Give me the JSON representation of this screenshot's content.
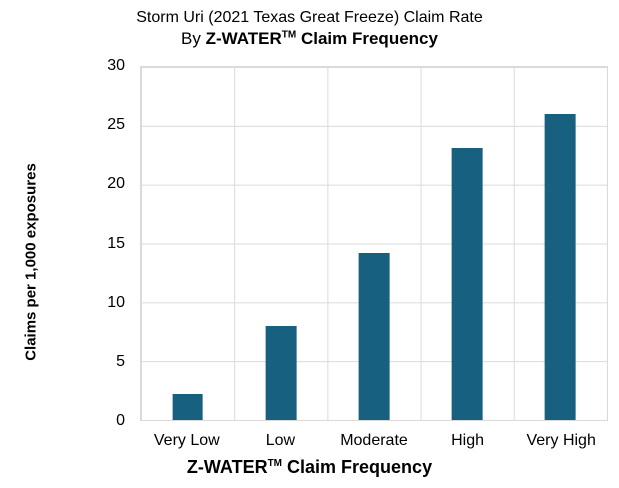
{
  "title": {
    "line1": "Storm Uri (2021 Texas Great Freeze) Claim Rate",
    "line2_prefix": "By ",
    "line2_brand": "Z-WATER",
    "line2_tm": "TM",
    "line2_suffix": " Claim Frequency"
  },
  "axes": {
    "ylabel": "Claims per 1,000 exposures",
    "xlabel_brand": "Z-WATER",
    "xlabel_tm": "TM",
    "xlabel_suffix": " Claim Frequency"
  },
  "chart_data": {
    "type": "bar",
    "title": "Storm Uri (2021 Texas Great Freeze) Claim Rate By Z-WATER™ Claim Frequency",
    "categories": [
      "Very Low",
      "Low",
      "Moderate",
      "High",
      "Very High"
    ],
    "values": [
      2.2,
      8,
      14.2,
      23.1,
      26
    ],
    "xlabel": "Z-WATER™ Claim Frequency",
    "ylabel": "Claims per 1,000 exposures",
    "yticks": [
      0,
      5,
      10,
      15,
      20,
      25,
      30
    ],
    "ylim": [
      0,
      30
    ],
    "grid": true,
    "legend": false,
    "bar_color": "#18607F",
    "grid_color": "#DADADA",
    "text_color": "#000000",
    "background_color": "#FFFFFF"
  }
}
